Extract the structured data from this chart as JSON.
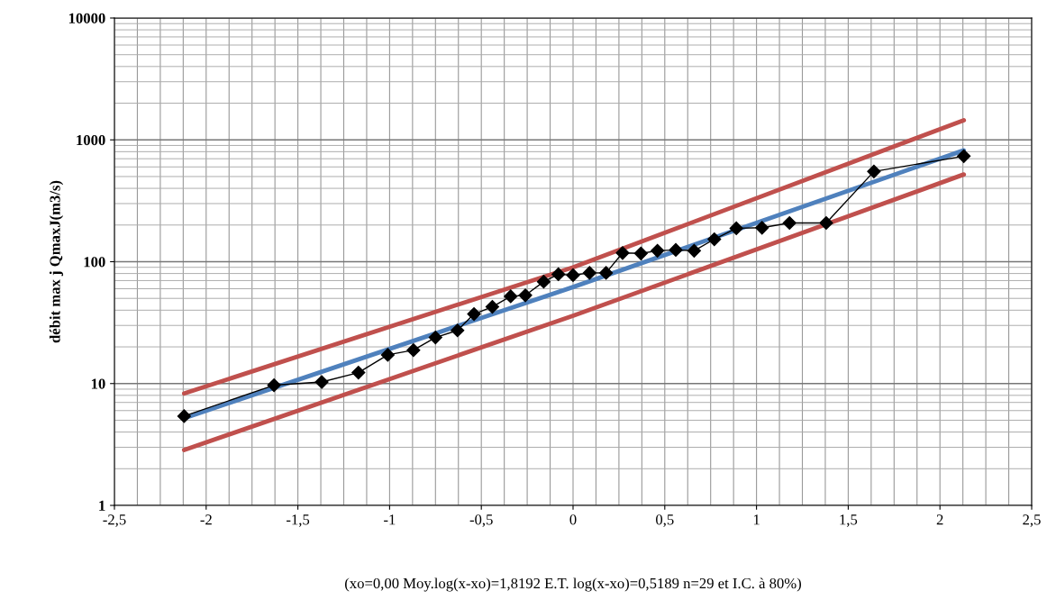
{
  "chart_data": {
    "type": "line",
    "xlabel": "(xo=0,00 Moy.log(x-xo)=1,8192 E.T. log(x-xo)=0,5189 n=29 et I.C. à 80%)",
    "ylabel": "débit max j QmaxJ(m3/s)",
    "log": "y",
    "grid": true,
    "xlim": [
      -2.5,
      2.5
    ],
    "ylim": [
      1,
      10000
    ],
    "xticks": [
      {
        "value": -2.5,
        "label": "-2,5"
      },
      {
        "value": -2,
        "label": "-2"
      },
      {
        "value": -1.5,
        "label": "-1,5"
      },
      {
        "value": -1,
        "label": "-1"
      },
      {
        "value": -0.5,
        "label": "-0,5"
      },
      {
        "value": 0,
        "label": "0"
      },
      {
        "value": 0.5,
        "label": "0,5"
      },
      {
        "value": 1,
        "label": "1"
      },
      {
        "value": 1.5,
        "label": "1,5"
      },
      {
        "value": 2,
        "label": "2"
      },
      {
        "value": 2.5,
        "label": "2,5"
      }
    ],
    "yticks": [
      1,
      10,
      100,
      1000,
      10000
    ],
    "series": [
      {
        "color": "#c0504d",
        "marker": "none",
        "x": [
          -2.12,
          0,
          2.13
        ],
        "values": [
          8.3,
          90,
          1450
        ]
      },
      {
        "color": "#c0504d",
        "marker": "none",
        "x": [
          -2.12,
          0,
          2.13
        ],
        "values": [
          2.85,
          36,
          520
        ]
      },
      {
        "color": "#4f81bd",
        "marker": "none",
        "x": [
          -2.12,
          0,
          2.13
        ],
        "values": [
          5.2,
          62,
          820
        ]
      },
      {
        "color": "#000000",
        "marker": "diamond",
        "x": [
          -2.12,
          -1.63,
          -1.37,
          -1.17,
          -1.01,
          -0.87,
          -0.75,
          -0.63,
          -0.54,
          -0.44,
          -0.34,
          -0.26,
          -0.16,
          -0.08,
          0.0,
          0.09,
          0.18,
          0.27,
          0.37,
          0.46,
          0.56,
          0.66,
          0.77,
          0.89,
          1.03,
          1.18,
          1.38,
          1.64,
          2.13
        ],
        "values": [
          5.4,
          9.7,
          10.3,
          12.3,
          17.2,
          18.8,
          23.9,
          27.3,
          37.2,
          42.6,
          52,
          53,
          68.6,
          78.9,
          77.5,
          81,
          81,
          118,
          117,
          123,
          125,
          123,
          153,
          188,
          190,
          208,
          208,
          550,
          735
        ]
      }
    ]
  }
}
